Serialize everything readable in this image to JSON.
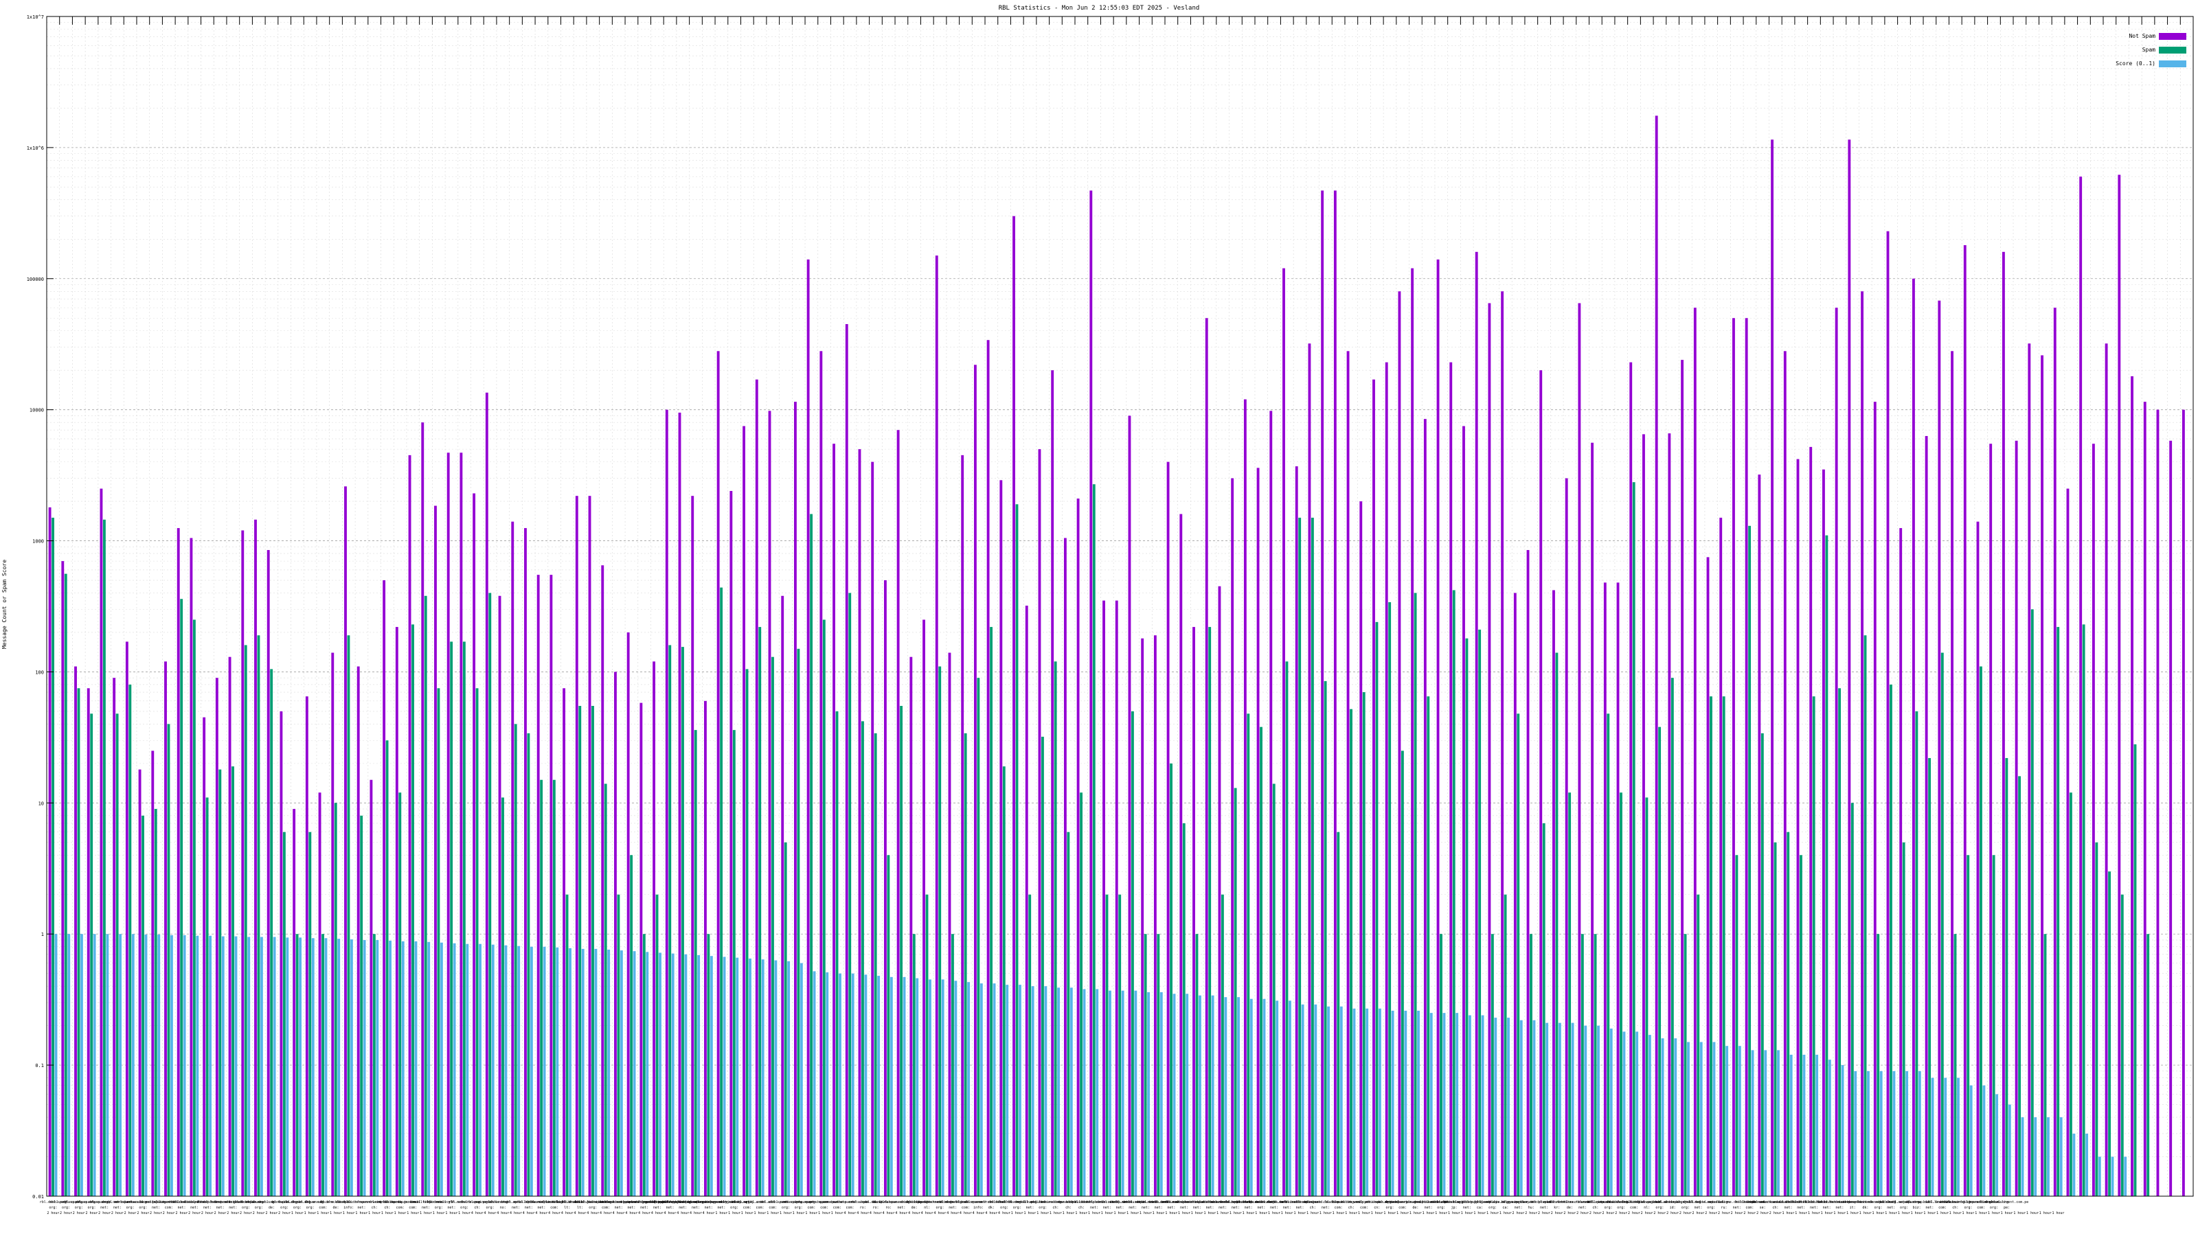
{
  "chart_data": {
    "type": "bar",
    "title": "RBL Statistics - Mon Jun  2 12:55:03 EDT 2025 - Vesland",
    "ylabel": "Message Count or Spam Score",
    "xlabel": "",
    "yscale": "log",
    "ylim": [
      0.01,
      1000000
    ],
    "y_ticks": [
      {
        "value": 0.01,
        "label": "0.01"
      },
      {
        "value": 0.1,
        "label": "0.1"
      },
      {
        "value": 1,
        "label": "1"
      },
      {
        "value": 10,
        "label": "10"
      },
      {
        "value": 100,
        "label": "100"
      },
      {
        "value": 1000,
        "label": "1000"
      },
      {
        "value": 10000,
        "label": "10000"
      },
      {
        "value": 100000,
        "label": "100000"
      },
      {
        "value": 1000000,
        "label": "1x10^6"
      },
      {
        "value": 10000000,
        "label": "1x10^7"
      }
    ],
    "legend_position": "top-right",
    "grid": true,
    "colors": {
      "not_spam": "#9400d3",
      "spam": "#009e73",
      "score": "#56b4e9"
    },
    "category_line1": [
      "rbl.dnsbl.org",
      "sbl.spamhaus.org",
      "xbl.spamhaus.org",
      "pbl.spamhaus.org",
      "bl.spamcop.net",
      "dnsbl.sorbs.net",
      "zen.spamhaus.org",
      "b.barracudacentral.org",
      "bl.mailspike.net",
      "psbl.surriel.com",
      "ix.dnsbl.manitu.net",
      "dnsbl-1.uceprotect.net",
      "dnsbl-2.uceprotect.net",
      "dnsbl-3.uceprotect.net",
      "truncate.gbudb.net",
      "dnsbl.dronebl.org",
      "cbl.abuseat.org",
      "spam.dnsbl.anonmails.de",
      "bl.0spam.org",
      "rbl.0spam.org",
      "nbl.0spam.org",
      "ubl.unsubscore.com",
      "bl.blocklist.de",
      "db.wpbl.info",
      "rbl.interserver.net",
      "spamrbl.imp.ch",
      "wormrbl.imp.ch",
      "bl.nordspam.com",
      "hostkarma.junkemailfilter.com",
      "dnsbl.kempt.net",
      "bl.drmx.org",
      "all.s5h.net",
      "rbl.schulte.org",
      "dnsrbl.swinog.ch",
      "spam.pedantic.org",
      "bl.konstant.no",
      "dnsbl.spfbl.net",
      "z.mailspike.net",
      "bl.suomispam.net",
      "rbl.realtimeblacklist.com",
      "black.dnsbl.brukalai.lt",
      "light.dnsbl.brukalai.lt",
      "dnsbl.justspam.org",
      "bl.score.senderscore.com",
      "srnblack.surgate.net",
      "backscatter.spameatingmonkey.net",
      "bl.spameatingmonkey.net",
      "fresh.spameatingmonkey.net",
      "fresh10.spameatingmonkey.net",
      "fresh15.spameatingmonkey.net",
      "fresh30.spameatingmonkey.net",
      "uribl.spameatingmonkey.net",
      "urired.spameatingmonkey.net",
      "multi.surbl.org",
      "black.uribl.com",
      "grey.uribl.com",
      "red.uribl.com",
      "dbl.spamhaus.org",
      "zrd.spamhaus.org",
      "dyna.spamrats.com",
      "noptr.spamrats.com",
      "spam.spamrats.com",
      "auth.spamrats.com",
      "rbl.abuse.ro",
      "pbl.abuse.ro",
      "uribl.abuse.ro",
      "bl.ipv6.spameatingmonkey.net",
      "dnsbl.inps.de",
      "dnsbl.beetjevreemd.nl",
      "ips.backscatterer.org",
      "rbl.megarbl.net",
      "dnsbl.cobion.com",
      "dnsbl.rv-soft.info",
      "spamsources.fabel.dk",
      "rbl.efnetrbl.org",
      "dnsbl.tornevall.org",
      "dnsbl.zapbl.net",
      "bl.emailbasura.org",
      "combined.abuse.ch",
      "drone.abuse.ch",
      "httpbl.abuse.ch",
      "dul.dnsbl.sorbs.net",
      "http.dnsbl.sorbs.net",
      "misc.dnsbl.sorbs.net",
      "smtp.dnsbl.sorbs.net",
      "socks.dnsbl.sorbs.net",
      "spam.dnsbl.sorbs.net",
      "web.dnsbl.sorbs.net",
      "zombie.dnsbl.sorbs.net",
      "new.spam.dnsbl.sorbs.net",
      "recent.spam.dnsbl.sorbs.net",
      "escalations.dnsbl.sorbs.net",
      "noservers.dnsbl.sorbs.net",
      "old.spam.dnsbl.sorbs.net",
      "problems.dnsbl.sorbs.net",
      "proxies.dnsbl.sorbs.net",
      "relays.dnsbl.sorbs.net",
      "safe.dnsbl.sorbs.net",
      "dnsbl.abuse.ch",
      "spamguard.leadmon.net",
      "bl.tiopan.com",
      "blacklist.woody.ch",
      "bogons.cymru.com",
      "cdl.anti-spam.org.cn",
      "dnsbl.dronebl.org",
      "dyna.spamrats.com",
      "exitnodes.tor.dnsbl.sectoor.de",
      "images.rbl.msrbl.net",
      "ips.backscatterer.org",
      "mail-abuse.blacklist.jp",
      "phishing.rbl.msrbl.net",
      "proxy.bl.gweep.ca",
      "rbl.schulte.org",
      "relays.bl.gweep.ca",
      "relays.nether.net",
      "singular.ttk.pte.hu",
      "spam.rbl.msrbl.net",
      "spamlist.or.kr",
      "tor.dnsbl.sectoor.de",
      "virus.rbl.msrbl.net",
      "wormrbl.imp.ch",
      "bl.spamcannibal.org",
      "access.redhawk.org",
      "blackholes.five-ten-sg.com",
      "blacklist.sci.kun.nl",
      "dialups.mail-abuse.org",
      "dnsbl.antispam.or.id",
      "dnsbl.njabl.org",
      "dnsbl.solid.net",
      "duinv.aupads.org",
      "dul.ru",
      "escalations.dnsbl.sorbs.net",
      "hil.habeas.com",
      "intruders.docs.uu.se",
      "ipbl.zeustracker.abuse.ch",
      "korea.services.net",
      "l1.bbfh.ext.sorbs.net",
      "l2.bbfh.ext.sorbs.net",
      "l3.bbfh.ext.sorbs.net",
      "l4.bbfh.ext.sorbs.net",
      "mail.people.it",
      "no-more-funn.moensted.dk",
      "orvedb.aupads.org",
      "rbl.snark.net",
      "rsbl.aupads.org",
      "sbl.csma.biz",
      "spamtrap.drbl.drand.net",
      "ubl.lashback.com",
      "uribl.swinog.ch",
      "whois.rfc-ignorant.org",
      "bl.spamstinks.com",
      "list.dnswl.org",
      "dnsbl.calivent.com.pe"
    ],
    "category_line2": [
      "org:",
      "org:",
      "org:",
      "org:",
      "net:",
      "net:",
      "org:",
      "org:",
      "net:",
      "com:",
      "net:",
      "net:",
      "net:",
      "net:",
      "net:",
      "org:",
      "org:",
      "de:",
      "org:",
      "org:",
      "org:",
      "com:",
      "de:",
      "info:",
      "net:",
      "ch:",
      "ch:",
      "com:",
      "com:",
      "net:",
      "org:",
      "net:",
      "org:",
      "ch:",
      "org:",
      "no:",
      "net:",
      "net:",
      "net:",
      "com:",
      "lt:",
      "lt:",
      "org:",
      "com:",
      "net:",
      "net:",
      "net:",
      "net:",
      "net:",
      "net:",
      "net:",
      "net:",
      "net:",
      "org:",
      "com:",
      "com:",
      "com:",
      "org:",
      "org:",
      "com:",
      "com:",
      "com:",
      "com:",
      "ro:",
      "ro:",
      "ro:",
      "net:",
      "de:",
      "nl:",
      "org:",
      "net:",
      "com:",
      "info:",
      "dk:",
      "org:",
      "org:",
      "net:",
      "org:",
      "ch:",
      "ch:",
      "ch:",
      "net:",
      "net:",
      "net:",
      "net:",
      "net:",
      "net:",
      "net:",
      "net:",
      "net:",
      "net:",
      "net:",
      "net:",
      "net:",
      "net:",
      "net:",
      "net:",
      "net:",
      "ch:",
      "net:",
      "com:",
      "ch:",
      "com:",
      "cn:",
      "org:",
      "com:",
      "de:",
      "net:",
      "org:",
      "jp:",
      "net:",
      "ca:",
      "org:",
      "ca:",
      "net:",
      "hu:",
      "net:",
      "kr:",
      "de:",
      "net:",
      "ch:",
      "org:",
      "org:",
      "com:",
      "nl:",
      "org:",
      "id:",
      "org:",
      "net:",
      "org:",
      "ru:",
      "net:",
      "com:",
      "se:",
      "ch:",
      "net:",
      "net:",
      "net:",
      "net:",
      "net:",
      "it:",
      "dk:",
      "org:",
      "net:",
      "org:",
      "biz:",
      "net:",
      "com:",
      "ch:",
      "org:",
      "com:",
      "org:",
      "pe:"
    ],
    "category_line3": [
      "2 hour",
      "2 hour",
      "2 hour",
      "2 hour",
      "2 hour",
      "2 hour",
      "2 hour",
      "2 hour",
      "2 hour",
      "2 hour",
      "2 hour",
      "2 hour",
      "2 hour",
      "2 hour",
      "2 hour",
      "2 hour",
      "2 hour",
      "2 hour",
      "2 hour",
      "1 hour",
      "1 hour",
      "1 hour",
      "1 hour",
      "1 hour",
      "1 hour",
      "1 hour",
      "1 hour",
      "1 hour",
      "1 hour",
      "1 hour",
      "1 hour",
      "1 hour",
      "1 hour",
      "4 hour",
      "4 hour",
      "4 hour",
      "4 hour",
      "4 hour",
      "4 hour",
      "4 hour",
      "4 hour",
      "4 hour",
      "4 hour",
      "4 hour",
      "4 hour",
      "4 hour",
      "4 hour",
      "4 hour",
      "4 hour",
      "4 hour",
      "4 hour",
      "4 hour",
      "1 hour",
      "1 hour",
      "1 hour",
      "1 hour",
      "1 hour",
      "1 hour",
      "1 hour",
      "1 hour",
      "1 hour",
      "1 hour",
      "4 hour",
      "4 hour",
      "4 hour",
      "4 hour",
      "4 hour",
      "4 hour",
      "4 hour",
      "4 hour",
      "4 hour",
      "4 hour",
      "4 hour",
      "4 hour",
      "4 hour",
      "1 hour",
      "1 hour",
      "1 hour",
      "1 hour",
      "1 hour",
      "1 hour",
      "1 hour",
      "1 hour",
      "1 hour",
      "1 hour",
      "1 hour",
      "1 hour",
      "1 hour",
      "1 hour",
      "1 hour",
      "1 hour",
      "1 hour",
      "1 hour",
      "1 hour",
      "1 hour",
      "1 hour",
      "1 hour",
      "1 hour",
      "1 hour",
      "1 hour",
      "1 hour",
      "1 hour",
      "1 hour",
      "1 hour",
      "1 hour",
      "1 hour",
      "1 hour",
      "1 hour",
      "1 hour",
      "1 hour",
      "1 hour",
      "1 hour",
      "1 hour",
      "1 hour",
      "2 hour",
      "2 hour",
      "2 hour",
      "2 hour",
      "2 hour",
      "2 hour",
      "2 hour",
      "2 hour",
      "2 hour",
      "2 hour",
      "2 hour",
      "2 hour",
      "2 hour",
      "2 hour",
      "2 hour",
      "2 hour",
      "2 hour",
      "2 hour",
      "2 hour",
      "2 hour",
      "2 hour",
      "1 hour",
      "1 hour",
      "1 hour",
      "1 hour",
      "1 hour",
      "1 hour",
      "1 hour",
      "1 hour",
      "1 hour",
      "1 hour",
      "1 hour",
      "1 hour",
      "1 hour",
      "1 hour",
      "1 hour",
      "1 hour",
      "1 hour",
      "1 hour",
      "1 hour",
      "1 hour",
      "1 hour",
      "1 hour"
    ],
    "series": [
      {
        "name": "Not Spam",
        "values": [
          1800,
          700,
          110,
          75,
          2500,
          90,
          170,
          18,
          25,
          120,
          1250,
          1050,
          45,
          90,
          130,
          1200,
          1450,
          850,
          50,
          9,
          65,
          12,
          140,
          2600,
          110,
          15,
          500,
          220,
          4500,
          8000,
          1850,
          4700,
          4700,
          2300,
          13500,
          380,
          1400,
          1250,
          550,
          550,
          75,
          2200,
          2200,
          650,
          100,
          200,
          58,
          120,
          10000,
          9500,
          2200,
          60,
          28000,
          2400,
          7500,
          17000,
          9800,
          380,
          11500,
          140000,
          28000,
          5500,
          45000,
          5000,
          4000,
          500,
          7000,
          130,
          250,
          150000,
          140,
          4500,
          22000,
          34000,
          2900,
          300000,
          320,
          5000,
          20000,
          1050,
          2100,
          470000,
          350,
          350,
          9000,
          180,
          190,
          4000,
          1600,
          220,
          50000,
          450,
          3000,
          12000,
          3600,
          9800,
          120000,
          3700,
          32000,
          470000,
          470000,
          28000,
          2000,
          17000,
          23000,
          80000,
          120000,
          8500,
          140000,
          23000,
          7500,
          160000,
          65000,
          80000,
          400,
          850,
          20000,
          420,
          3000,
          65000,
          5600,
          480,
          480,
          23000,
          6500,
          1750000,
          6600,
          24000,
          60000,
          750,
          1500,
          50000,
          50000,
          3200,
          1150000,
          28000,
          4200,
          5200,
          3500,
          60000,
          1150000,
          80000,
          11500,
          230000,
          1250,
          100000,
          6300,
          68000,
          28000,
          180000,
          1400,
          5500,
          160000,
          5800,
          32000,
          26000,
          60000,
          2500,
          600000,
          5500,
          32000,
          620000,
          18000,
          11500,
          10000,
          5800,
          10000
        ]
      },
      {
        "name": "Spam",
        "values": [
          1500,
          560,
          75,
          48,
          1450,
          48,
          80,
          8,
          9,
          40,
          360,
          250,
          11,
          18,
          19,
          160,
          190,
          105,
          6,
          1,
          6,
          1,
          10,
          190,
          8,
          1,
          30,
          12,
          230,
          380,
          75,
          170,
          170,
          75,
          400,
          11,
          40,
          34,
          15,
          15,
          2,
          55,
          55,
          14,
          2,
          4,
          1,
          2,
          160,
          155,
          36,
          1,
          440,
          36,
          105,
          220,
          130,
          5,
          150,
          1600,
          250,
          50,
          400,
          42,
          34,
          4,
          55,
          1,
          2,
          110,
          1,
          34,
          90,
          220,
          19,
          1900,
          2,
          32,
          120,
          6,
          12,
          2700,
          2,
          2,
          50,
          1,
          1,
          20,
          7,
          1,
          220,
          2,
          13,
          48,
          38,
          14,
          120,
          1500,
          1500,
          85,
          6,
          52,
          70,
          240,
          340,
          25,
          400,
          65,
          1,
          420,
          180,
          210,
          1,
          2,
          48,
          1,
          7,
          140,
          12,
          1,
          1,
          48,
          12,
          2800,
          11,
          38,
          90,
          1,
          2,
          65,
          65,
          4,
          1300,
          34,
          5,
          6,
          4,
          65,
          1100,
          75,
          10,
          190,
          1,
          80,
          5,
          50,
          22,
          140,
          1,
          4,
          110,
          4,
          22,
          16,
          300,
          1,
          220,
          12,
          230,
          5,
          3,
          2,
          28,
          1
        ]
      },
      {
        "name": "Score (0..1)",
        "values": [
          1.0,
          1.0,
          1.0,
          1.0,
          1.0,
          1.0,
          1.0,
          0.99,
          0.99,
          0.98,
          0.98,
          0.97,
          0.97,
          0.96,
          0.96,
          0.95,
          0.95,
          0.95,
          0.94,
          0.94,
          0.93,
          0.93,
          0.92,
          0.91,
          0.9,
          0.9,
          0.89,
          0.88,
          0.88,
          0.87,
          0.86,
          0.85,
          0.84,
          0.84,
          0.83,
          0.82,
          0.81,
          0.8,
          0.8,
          0.79,
          0.78,
          0.77,
          0.77,
          0.76,
          0.75,
          0.74,
          0.73,
          0.72,
          0.71,
          0.7,
          0.69,
          0.68,
          0.67,
          0.66,
          0.65,
          0.64,
          0.63,
          0.62,
          0.6,
          0.52,
          0.51,
          0.5,
          0.5,
          0.49,
          0.48,
          0.47,
          0.47,
          0.46,
          0.45,
          0.45,
          0.44,
          0.43,
          0.42,
          0.42,
          0.41,
          0.41,
          0.4,
          0.4,
          0.39,
          0.39,
          0.38,
          0.38,
          0.37,
          0.37,
          0.37,
          0.36,
          0.36,
          0.35,
          0.35,
          0.34,
          0.34,
          0.33,
          0.33,
          0.32,
          0.32,
          0.31,
          0.31,
          0.29,
          0.29,
          0.28,
          0.28,
          0.27,
          0.27,
          0.27,
          0.26,
          0.26,
          0.26,
          0.25,
          0.25,
          0.25,
          0.24,
          0.24,
          0.23,
          0.23,
          0.22,
          0.22,
          0.21,
          0.21,
          0.21,
          0.2,
          0.2,
          0.19,
          0.18,
          0.18,
          0.17,
          0.16,
          0.16,
          0.15,
          0.15,
          0.15,
          0.14,
          0.14,
          0.13,
          0.13,
          0.13,
          0.12,
          0.12,
          0.12,
          0.11,
          0.1,
          0.09,
          0.09,
          0.09,
          0.09,
          0.09,
          0.09,
          0.08,
          0.08,
          0.08,
          0.07,
          0.07,
          0.06,
          0.05,
          0.04,
          0.04,
          0.04,
          0.04,
          0.03,
          0.03,
          0.02,
          0.02,
          0.02,
          0.01
        ]
      }
    ]
  }
}
